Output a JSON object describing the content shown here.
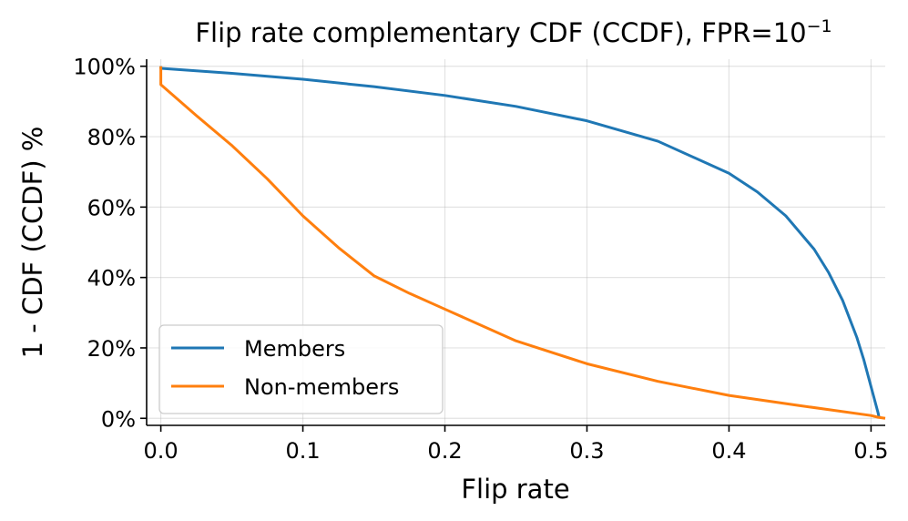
{
  "chart_data": {
    "type": "line",
    "title": "Flip rate complementary CDF (CCDF), FPR=10",
    "title_superscript": "−1",
    "xlabel": "Flip rate",
    "ylabel": "1 - CDF (CCDF) %",
    "xlim": [
      -0.01,
      0.51
    ],
    "ylim": [
      -2,
      102
    ],
    "x_ticks": [
      0.0,
      0.1,
      0.2,
      0.3,
      0.4,
      0.5
    ],
    "x_tick_labels": [
      "0.0",
      "0.1",
      "0.2",
      "0.3",
      "0.4",
      "0.5"
    ],
    "y_ticks": [
      0,
      20,
      40,
      60,
      80,
      100
    ],
    "y_tick_labels": [
      "0%",
      "20%",
      "40%",
      "60%",
      "80%",
      "100%"
    ],
    "grid": true,
    "legend_position": "bottom-left",
    "series": [
      {
        "name": "Members",
        "color": "#1f77b4",
        "x": [
          0.0,
          0.0,
          0.05,
          0.1,
          0.15,
          0.2,
          0.25,
          0.3,
          0.35,
          0.4,
          0.42,
          0.44,
          0.46,
          0.47,
          0.48,
          0.49,
          0.495,
          0.5,
          0.503,
          0.505,
          0.5055
        ],
        "y": [
          100,
          99.4,
          98.0,
          96.3,
          94.2,
          91.7,
          88.6,
          84.5,
          78.7,
          69.6,
          64.3,
          57.5,
          48.0,
          41.5,
          33.5,
          23.0,
          16.5,
          9.0,
          4.5,
          1.5,
          0.5
        ]
      },
      {
        "name": "Non-members",
        "color": "#ff7f0e",
        "x": [
          0.0,
          0.0,
          0.025,
          0.05,
          0.075,
          0.1,
          0.125,
          0.15,
          0.175,
          0.2,
          0.25,
          0.3,
          0.35,
          0.4,
          0.45,
          0.5,
          0.505,
          0.51
        ],
        "y": [
          100,
          94.8,
          86.0,
          77.5,
          68.0,
          57.5,
          48.5,
          40.5,
          35.5,
          31.0,
          22.0,
          15.5,
          10.5,
          6.5,
          3.6,
          0.8,
          0.3,
          0.0
        ]
      }
    ]
  }
}
